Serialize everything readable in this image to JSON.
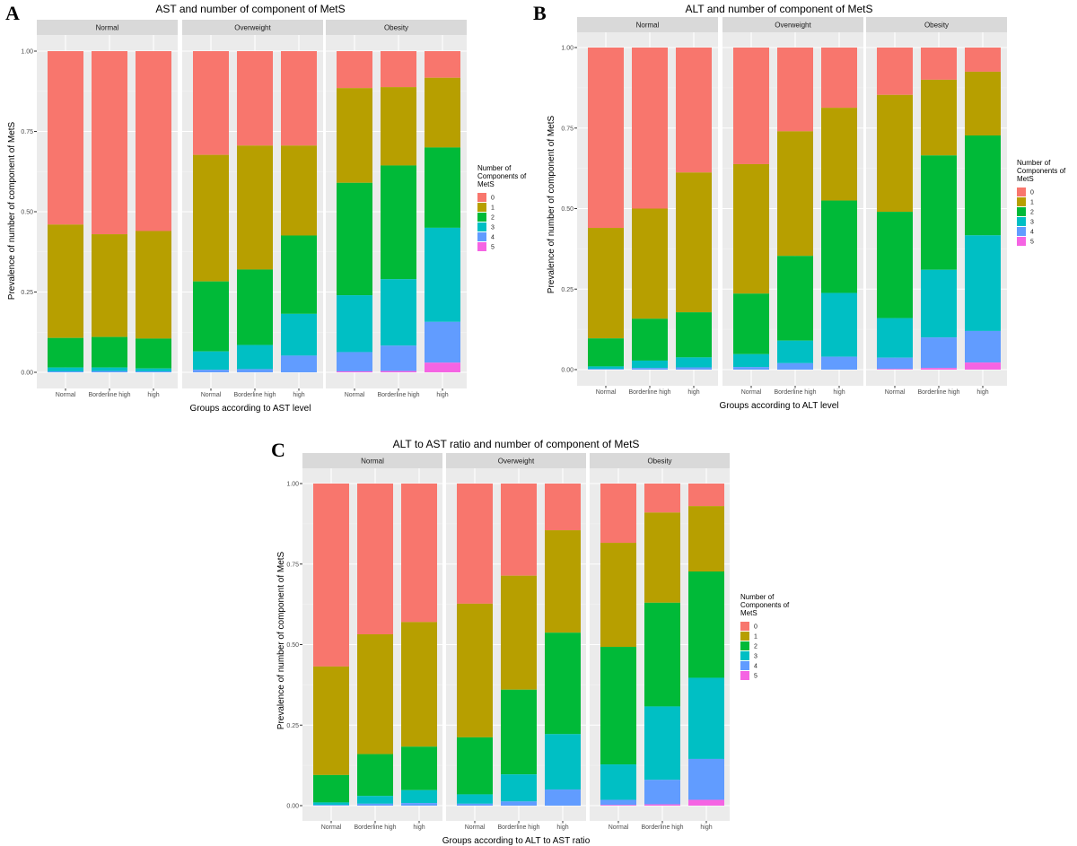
{
  "figure": {
    "legend": {
      "title": "Number of\nComponents of\nMetS",
      "levels": [
        "0",
        "1",
        "2",
        "3",
        "4",
        "5"
      ],
      "colors": [
        "#F8766D",
        "#B79F00",
        "#00BA38",
        "#00BFC4",
        "#619CFF",
        "#F564E3"
      ]
    }
  },
  "chart_data": [
    {
      "panel": "A",
      "type": "bar",
      "stacked": true,
      "title": "AST and number of component of MetS",
      "xlabel": "Groups according to AST level",
      "ylabel": "Prevalence of number of component of MetS",
      "ylim": [
        0,
        1
      ],
      "yticks": [
        "0.00",
        "0.25",
        "0.50",
        "0.75",
        "1.00"
      ],
      "facets": [
        "Normal",
        "Overweight",
        "Obesity"
      ],
      "categories": [
        "Normal",
        "Borderline high",
        "high"
      ],
      "cumulative": [
        [
          [
            1.0,
            0.46,
            0.107,
            0.015,
            0.003,
            0.0
          ],
          [
            1.0,
            0.43,
            0.11,
            0.015,
            0.004,
            0.0
          ],
          [
            1.0,
            0.44,
            0.105,
            0.012,
            0.003,
            0.0
          ]
        ],
        [
          [
            1.0,
            0.677,
            0.283,
            0.065,
            0.008,
            0.0
          ],
          [
            1.0,
            0.706,
            0.32,
            0.085,
            0.01,
            0.0
          ],
          [
            1.0,
            0.706,
            0.426,
            0.182,
            0.052,
            0.0
          ]
        ],
        [
          [
            1.0,
            0.885,
            0.59,
            0.24,
            0.063,
            0.003
          ],
          [
            1.0,
            0.888,
            0.644,
            0.29,
            0.083,
            0.004
          ],
          [
            1.0,
            0.917,
            0.7,
            0.45,
            0.157,
            0.03
          ]
        ]
      ]
    },
    {
      "panel": "B",
      "type": "bar",
      "stacked": true,
      "title": "ALT and number of component of MetS",
      "xlabel": "Groups according to ALT level",
      "ylabel": "Prevalence of number of component of MetS",
      "ylim": [
        0,
        1
      ],
      "yticks": [
        "0.00",
        "0.25",
        "0.50",
        "0.75",
        "1.00"
      ],
      "facets": [
        "Normal",
        "Overweight",
        "Obesity"
      ],
      "categories": [
        "Normal",
        "Borderline high",
        "high"
      ],
      "cumulative": [
        [
          [
            1.0,
            0.44,
            0.097,
            0.01,
            0.002,
            0.0
          ],
          [
            1.0,
            0.5,
            0.158,
            0.028,
            0.005,
            0.0
          ],
          [
            1.0,
            0.612,
            0.178,
            0.038,
            0.007,
            0.0
          ]
        ],
        [
          [
            1.0,
            0.638,
            0.236,
            0.048,
            0.008,
            0.0
          ],
          [
            1.0,
            0.74,
            0.353,
            0.09,
            0.02,
            0.0
          ],
          [
            1.0,
            0.813,
            0.525,
            0.238,
            0.04,
            0.0
          ]
        ],
        [
          [
            1.0,
            0.853,
            0.49,
            0.16,
            0.037,
            0.002
          ],
          [
            1.0,
            0.9,
            0.665,
            0.31,
            0.1,
            0.005
          ],
          [
            1.0,
            0.925,
            0.727,
            0.417,
            0.12,
            0.022
          ]
        ]
      ]
    },
    {
      "panel": "C",
      "type": "bar",
      "stacked": true,
      "title": "ALT to AST ratio and number of component of MetS",
      "xlabel": "Groups according to ALT to AST ratio",
      "ylabel": "Prevalence of number of component of MetS",
      "ylim": [
        0,
        1
      ],
      "yticks": [
        "0.00",
        "0.25",
        "0.50",
        "0.75",
        "1.00"
      ],
      "facets": [
        "Normal",
        "Overweight",
        "Obesity"
      ],
      "categories": [
        "Normal",
        "Borderline high",
        "high"
      ],
      "cumulative": [
        [
          [
            1.0,
            0.432,
            0.095,
            0.01,
            0.002,
            0.0
          ],
          [
            1.0,
            0.532,
            0.16,
            0.03,
            0.006,
            0.0
          ],
          [
            1.0,
            0.57,
            0.183,
            0.048,
            0.008,
            0.0
          ]
        ],
        [
          [
            1.0,
            0.627,
            0.212,
            0.035,
            0.006,
            0.0
          ],
          [
            1.0,
            0.714,
            0.36,
            0.097,
            0.013,
            0.0
          ],
          [
            1.0,
            0.855,
            0.537,
            0.222,
            0.05,
            0.0
          ]
        ],
        [
          [
            1.0,
            0.816,
            0.493,
            0.128,
            0.018,
            0.002
          ],
          [
            1.0,
            0.91,
            0.63,
            0.308,
            0.08,
            0.004
          ],
          [
            1.0,
            0.93,
            0.727,
            0.397,
            0.145,
            0.018
          ]
        ]
      ]
    }
  ]
}
